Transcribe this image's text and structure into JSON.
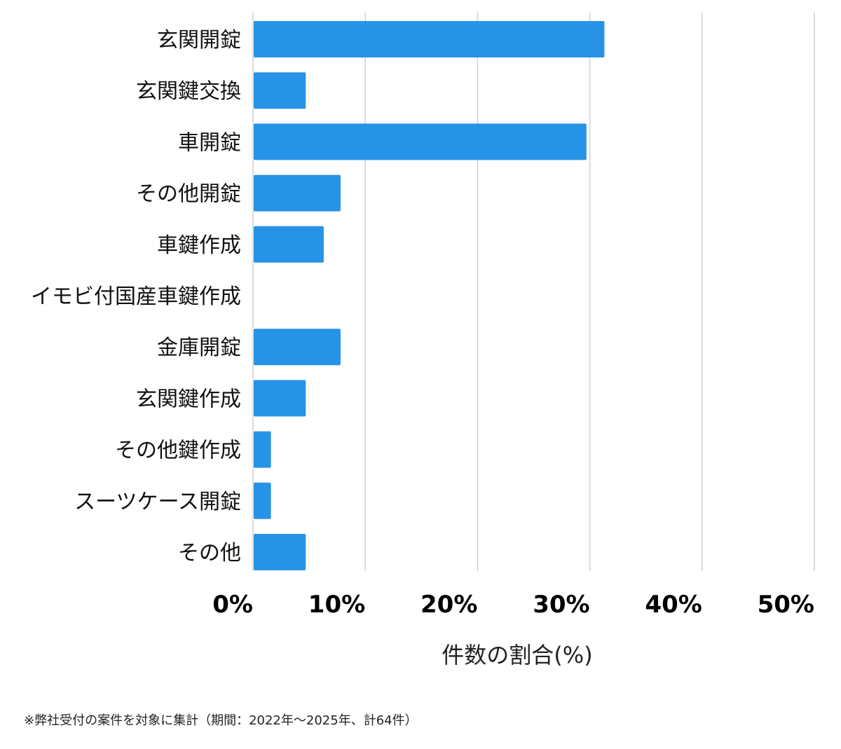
{
  "chart_data": {
    "type": "bar",
    "orientation": "horizontal",
    "categories": [
      "玄関開錠",
      "玄関鍵交換",
      "車開錠",
      "その他開錠",
      "車鍵作成",
      "イモビ付国産車鍵作成",
      "金庫開錠",
      "玄関鍵作成",
      "その他鍵作成",
      "スーツケース開錠",
      "その他"
    ],
    "values": [
      31.3,
      4.7,
      29.7,
      7.8,
      6.3,
      0,
      7.8,
      4.7,
      1.6,
      1.6,
      4.7
    ],
    "xlabel": "件数の割合(%)",
    "xlim": [
      0,
      50
    ],
    "ticks": [
      "0%",
      "10%",
      "20%",
      "30%",
      "40%",
      "50%"
    ],
    "grid": true,
    "bar_color": "#2793e6",
    "grid_color": "#d0d0d0"
  },
  "footnote": "※弊社受付の案件を対象に集計（期間：2022年〜2025年、計64件）"
}
